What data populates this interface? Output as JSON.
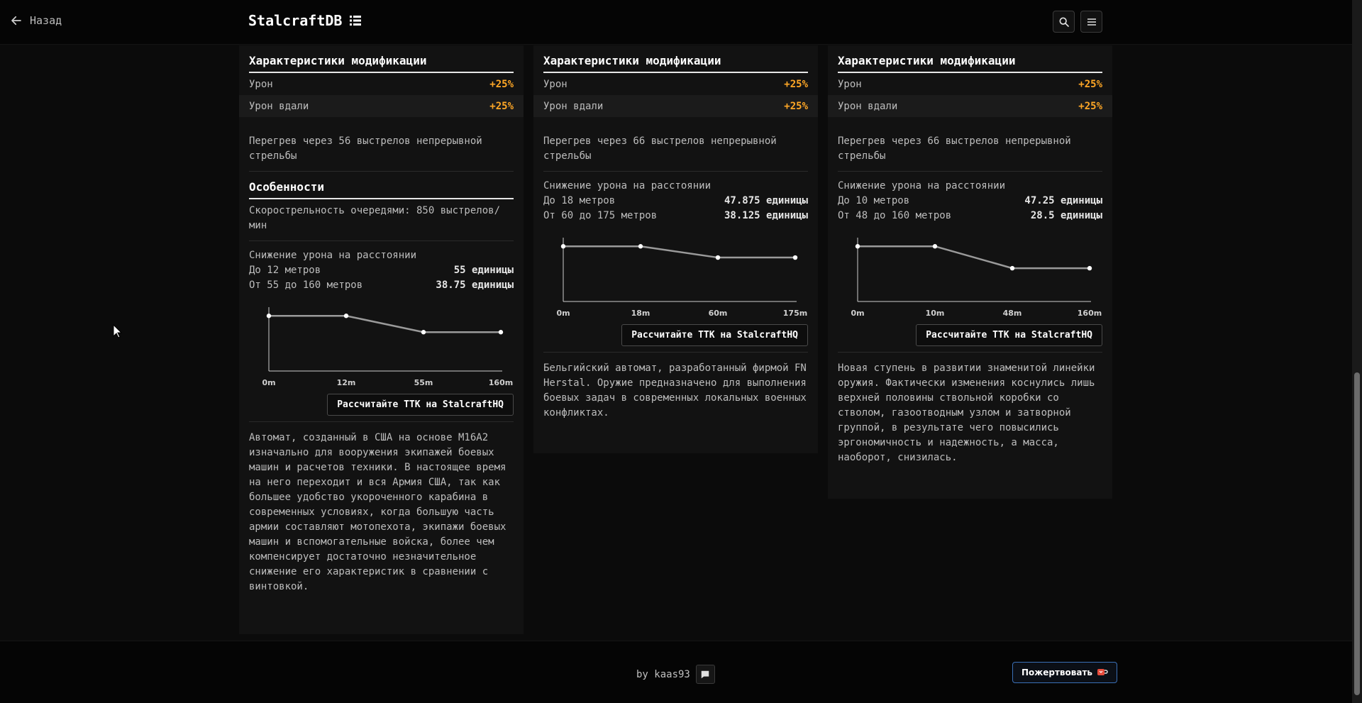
{
  "header": {
    "back_label": "Назад",
    "brand": "StalcraftDB"
  },
  "columns": [
    {
      "mod_title": "Характеристики модификации",
      "stats": [
        {
          "label": "Урон",
          "value": "+25%"
        },
        {
          "label": "Урон вдали",
          "value": "+25%"
        }
      ],
      "overheat": "Перегрев через 56 выстрелов непрерывной стрельбы",
      "features_title": "Особенности",
      "feature_text": "Скорострельность очередями: 850 выстрелов/мин",
      "drop_title": "Снижение урона на расстоянии",
      "drop_rows": [
        {
          "label": "До 12 метров",
          "value": "55 единицы"
        },
        {
          "label": "От 55 до 160 метров",
          "value": "38.75 единицы"
        }
      ],
      "chart_ticks": [
        "0m",
        "12m",
        "55m",
        "160m"
      ],
      "ttk_label": "Рассчитайте TTK на StalcraftHQ",
      "description": "Автомат, созданный в США на основе M16A2 изначально для вооружения экипажей боевых машин и расчетов техники. В настоящее время на него переходит и вся Армия США, так как большее удобство укороченного карабина в современных условиях, когда большую часть армии составляют мотопехота, экипажи боевых машин и вспомогательные войска, более чем компенсирует достаточно незначительное снижение его характеристик в сравнении с винтовкой."
    },
    {
      "mod_title": "Характеристики модификации",
      "stats": [
        {
          "label": "Урон",
          "value": "+25%"
        },
        {
          "label": "Урон вдали",
          "value": "+25%"
        }
      ],
      "overheat": "Перегрев через 66 выстрелов непрерывной стрельбы",
      "drop_title": "Снижение урона на расстоянии",
      "drop_rows": [
        {
          "label": "До 18 метров",
          "value": "47.875 единицы"
        },
        {
          "label": "От 60 до 175 метров",
          "value": "38.125 единицы"
        }
      ],
      "chart_ticks": [
        "0m",
        "18m",
        "60m",
        "175m"
      ],
      "ttk_label": "Рассчитайте TTK на StalcraftHQ",
      "description": "Бельгийский автомат, разработанный фирмой FN Herstal. Оружие предназначено для выполнения боевых задач в современных локальных военных конфликтах."
    },
    {
      "mod_title": "Характеристики модификации",
      "stats": [
        {
          "label": "Урон",
          "value": "+25%"
        },
        {
          "label": "Урон вдали",
          "value": "+25%"
        }
      ],
      "overheat": "Перегрев через 66 выстрелов непрерывной стрельбы",
      "drop_title": "Снижение урона на расстоянии",
      "drop_rows": [
        {
          "label": "До 10 метров",
          "value": "47.25 единицы"
        },
        {
          "label": "От 48 до 160 метров",
          "value": "28.5 единицы"
        }
      ],
      "chart_ticks": [
        "0m",
        "10m",
        "48m",
        "160m"
      ],
      "ttk_label": "Рассчитайте TTK на StalcraftHQ",
      "description": "Новая ступень в развитии знаменитой линейки оружия. Фактически изменения коснулись лишь верхней половины ствольной коробки со стволом, газоотводным узлом и затворной группой, в результате чего повысились эргономичность и надежность, а масса, наоборот, снизилась."
    }
  ],
  "chart_data": [
    {
      "type": "line",
      "x": [
        "0m",
        "12m",
        "55m",
        "160m"
      ],
      "values": [
        55,
        55,
        38.75,
        38.75
      ]
    },
    {
      "type": "line",
      "x": [
        "0m",
        "18m",
        "60m",
        "175m"
      ],
      "values": [
        47.875,
        47.875,
        38.125,
        38.125
      ]
    },
    {
      "type": "line",
      "x": [
        "0m",
        "10m",
        "48m",
        "160m"
      ],
      "values": [
        47.25,
        47.25,
        28.5,
        28.5
      ]
    }
  ],
  "footer": {
    "by_text": "by kaas93",
    "donate_label": "Пожертвовать"
  },
  "colors": {
    "accent": "#ffa726",
    "background": "#0b0b0b",
    "panel": "#121212"
  }
}
